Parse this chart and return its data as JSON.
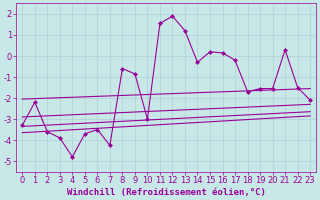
{
  "xlabel": "Windchill (Refroidissement éolien,°C)",
  "background_color": "#c8e8e8",
  "grid_color": "#b0d0d8",
  "line_color": "#990099",
  "xlim": [
    -0.5,
    23.5
  ],
  "ylim": [
    -5.5,
    2.5
  ],
  "xticks": [
    0,
    1,
    2,
    3,
    4,
    5,
    6,
    7,
    8,
    9,
    10,
    11,
    12,
    13,
    14,
    15,
    16,
    17,
    18,
    19,
    20,
    21,
    22,
    23
  ],
  "yticks": [
    -5,
    -4,
    -3,
    -2,
    -1,
    0,
    1,
    2
  ],
  "main_x": [
    0,
    1,
    2,
    3,
    4,
    5,
    6,
    7,
    8,
    9,
    10,
    11,
    12,
    13,
    14,
    15,
    16,
    17,
    18,
    19,
    20,
    21,
    22,
    23
  ],
  "main_y": [
    -3.3,
    -2.2,
    -3.6,
    -3.9,
    -4.8,
    -3.7,
    -3.5,
    -4.25,
    -0.6,
    -0.85,
    -3.0,
    1.55,
    1.9,
    1.2,
    -0.3,
    0.2,
    0.15,
    -0.2,
    -1.7,
    -1.55,
    -1.55,
    0.3,
    -1.5,
    -2.1
  ],
  "upper_line_x": [
    0,
    23
  ],
  "upper_line_y": [
    -2.05,
    -1.55
  ],
  "lower_line1_x": [
    0,
    23
  ],
  "lower_line1_y": [
    -2.9,
    -2.3
  ],
  "lower_line2_x": [
    0,
    23
  ],
  "lower_line2_y": [
    -3.35,
    -2.65
  ],
  "lower_line3_x": [
    0,
    23
  ],
  "lower_line3_y": [
    -3.65,
    -2.85
  ],
  "xlabel_fontsize": 6.5,
  "tick_fontsize": 6,
  "marker_size": 2.5,
  "lw": 0.8
}
